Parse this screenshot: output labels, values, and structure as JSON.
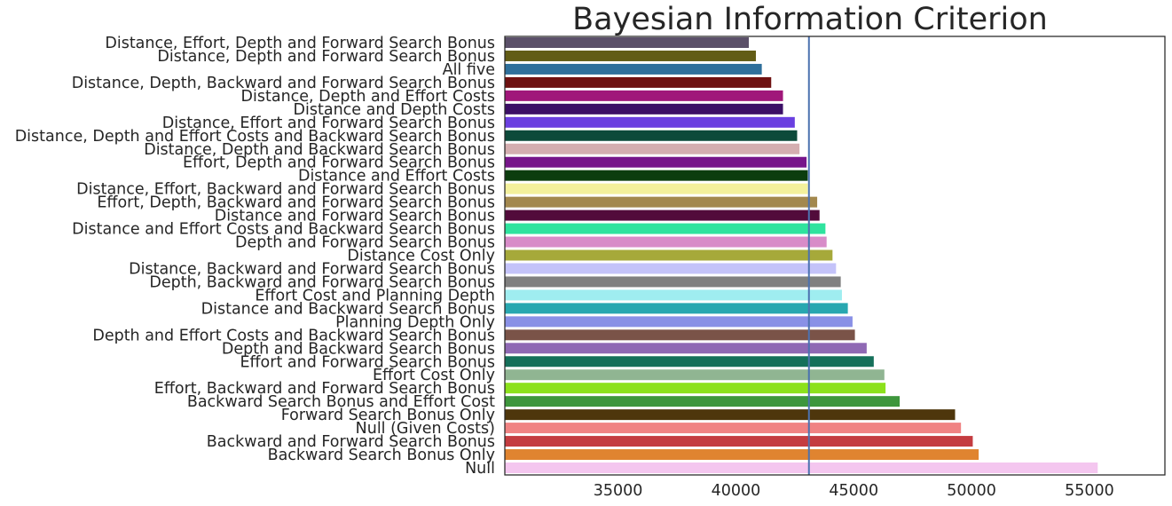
{
  "chart_data": {
    "type": "bar",
    "orientation": "horizontal",
    "title": "Bayesian Information Criterion",
    "xlabel": "",
    "ylabel": "",
    "xlim": [
      30200,
      58200
    ],
    "xticks": [
      35000,
      40000,
      45000,
      50000,
      55000
    ],
    "grid": false,
    "reference_line": {
      "value": 43100,
      "color": "#4c72b0"
    },
    "categories": [
      "Distance, Effort, Depth and Forward Search Bonus",
      "Distance, Depth and Forward Search Bonus",
      "All five",
      "Distance, Depth, Backward and Forward Search Bonus",
      "Distance, Depth and Effort Costs",
      "Distance and Depth Costs",
      "Distance, Effort and Forward Search Bonus",
      "Distance, Depth and Effort Costs and Backward Search Bonus",
      "Distance, Depth and Backward Search Bonus",
      "Effort, Depth and Forward Search Bonus",
      "Distance and Effort Costs",
      "Distance, Effort, Backward and Forward Search Bonus",
      "Effort, Depth, Backward and Forward Search Bonus",
      "Distance and Forward Search Bonus",
      "Distance and Effort Costs and Backward Search Bonus",
      "Depth and Forward Search Bonus",
      "Distance Cost Only",
      "Distance, Backward and Forward Search Bonus",
      "Depth, Backward and Forward Search Bonus",
      "Effort Cost and Planning Depth",
      "Distance and Backward Search Bonus",
      "Planning Depth Only",
      "Depth and Effort Costs and Backward Search Bonus",
      "Depth and Backward Search Bonus",
      "Effort and Forward Search Bonus",
      "Effort Cost Only",
      "Effort, Backward and Forward Search Bonus",
      "Backward Search Bonus and Effort Cost",
      "Forward Search Bonus Only",
      "Null (Given Costs)",
      "Backward and Forward Search Bonus",
      "Backward Search Bonus Only",
      "Null"
    ],
    "values": [
      40550,
      40850,
      41100,
      41500,
      42000,
      42000,
      42500,
      42600,
      42700,
      43000,
      43050,
      43050,
      43450,
      43550,
      43800,
      43850,
      44100,
      44250,
      44450,
      44500,
      44750,
      44950,
      45050,
      45550,
      45850,
      46300,
      46350,
      46950,
      49300,
      49550,
      50050,
      50300,
      55350
    ],
    "colors": [
      "#5b5069",
      "#625c15",
      "#2e6f9b",
      "#6e1111",
      "#a0177a",
      "#3b0f66",
      "#6a3fe0",
      "#0d4a3a",
      "#d4aeb0",
      "#77158a",
      "#0c3d0e",
      "#f3f09c",
      "#a3884e",
      "#520b3b",
      "#2fe39e",
      "#d88cc8",
      "#a6a93a",
      "#c4c3f9",
      "#808080",
      "#9fedf0",
      "#28a7b0",
      "#8990e6",
      "#7a5348",
      "#8f69b4",
      "#15705a",
      "#90b592",
      "#8ce11c",
      "#3e963c",
      "#4e360c",
      "#f08383",
      "#c43c40",
      "#e08430",
      "#f4c6ef"
    ]
  }
}
